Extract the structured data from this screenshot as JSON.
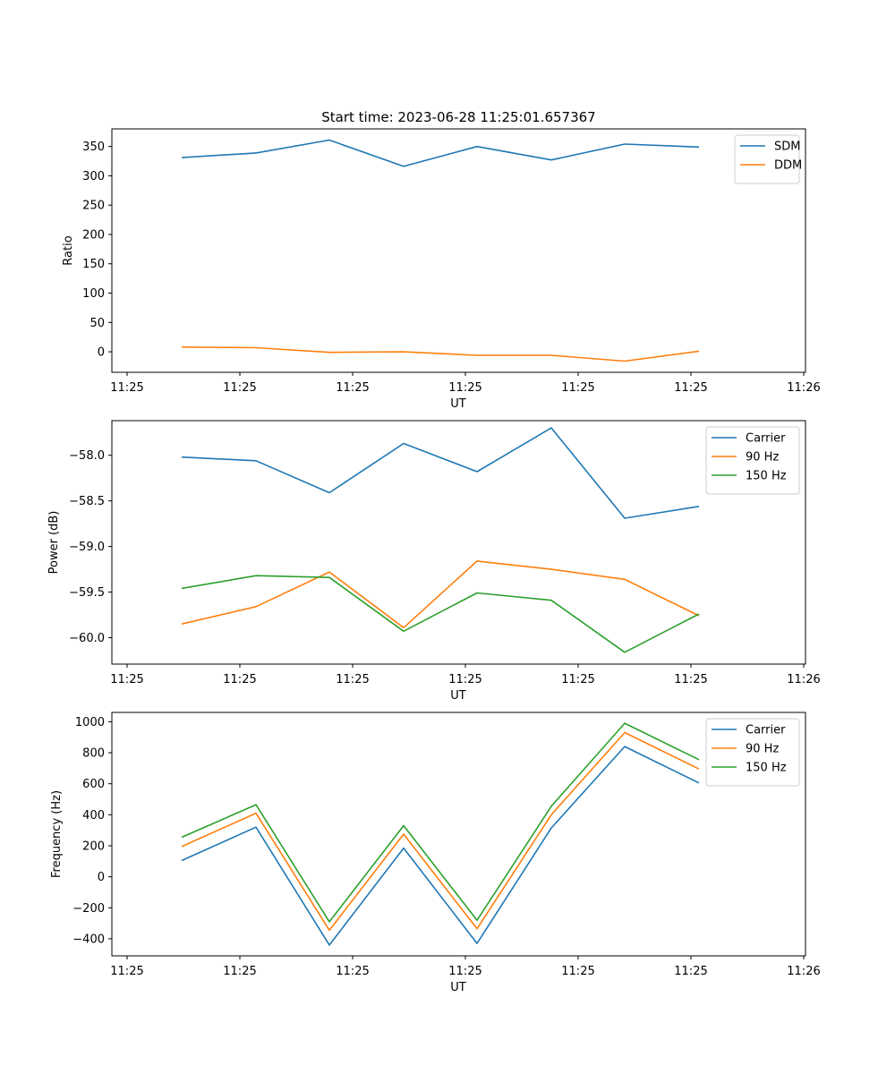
{
  "figure_title": "Start time: 2023-06-28 11:25:01.657367",
  "chart_data": [
    {
      "type": "line",
      "title": "Start time: 2023-06-28 11:25:01.657367",
      "xlabel": "UT",
      "ylabel": "Ratio",
      "x_tick_labels": [
        "11:25",
        "11:25",
        "11:25",
        "11:25",
        "11:25",
        "11:25",
        "11:26"
      ],
      "y_ticks": [
        0,
        50,
        100,
        150,
        200,
        250,
        300,
        350
      ],
      "ylim": [
        -35,
        380
      ],
      "legend_position": "top-right",
      "grid": false,
      "series": [
        {
          "name": "SDM",
          "color": "#1f77b4",
          "values": [
            331,
            339,
            361,
            316,
            350,
            327,
            354,
            349
          ]
        },
        {
          "name": "DDM",
          "color": "#ff7f0e",
          "values": [
            8,
            7,
            -1,
            0,
            -6,
            -6,
            -16,
            1
          ]
        }
      ]
    },
    {
      "type": "line",
      "title": "",
      "xlabel": "UT",
      "ylabel": "Power (dB)",
      "x_tick_labels": [
        "11:25",
        "11:25",
        "11:25",
        "11:25",
        "11:25",
        "11:25",
        "11:26"
      ],
      "y_ticks": [
        -60.0,
        -59.5,
        -59.0,
        -58.5,
        -58.0
      ],
      "y_tick_labels": [
        "−60.0",
        "−59.5",
        "−59.0",
        "−58.5",
        "−58.0"
      ],
      "ylim": [
        -60.29,
        -57.62
      ],
      "legend_position": "top-right",
      "grid": false,
      "series": [
        {
          "name": "Carrier",
          "color": "#1f77b4",
          "values": [
            -58.02,
            -58.06,
            -58.41,
            -57.87,
            -58.18,
            -57.7,
            -58.69,
            -58.56
          ]
        },
        {
          "name": "90 Hz",
          "color": "#ff7f0e",
          "values": [
            -59.85,
            -59.66,
            -59.28,
            -59.89,
            -59.16,
            -59.25,
            -59.36,
            -59.76
          ]
        },
        {
          "name": "150 Hz",
          "color": "#2ca02c",
          "values": [
            -59.46,
            -59.32,
            -59.34,
            -59.93,
            -59.51,
            -59.59,
            -60.16,
            -59.74
          ]
        }
      ]
    },
    {
      "type": "line",
      "title": "",
      "xlabel": "UT",
      "ylabel": "Frequency (Hz)",
      "x_tick_labels": [
        "11:25",
        "11:25",
        "11:25",
        "11:25",
        "11:25",
        "11:25",
        "11:26"
      ],
      "y_ticks": [
        -400,
        -200,
        0,
        200,
        400,
        600,
        800,
        1000
      ],
      "y_tick_labels": [
        "−400",
        "−200",
        "0",
        "200",
        "400",
        "600",
        "800",
        "1000"
      ],
      "ylim": [
        -510,
        1060
      ],
      "legend_position": "top-right",
      "grid": false,
      "series": [
        {
          "name": "Carrier",
          "color": "#1f77b4",
          "values": [
            105,
            320,
            -440,
            185,
            -430,
            315,
            840,
            605
          ]
        },
        {
          "name": "90 Hz",
          "color": "#ff7f0e",
          "values": [
            195,
            410,
            -345,
            275,
            -335,
            400,
            930,
            695
          ]
        },
        {
          "name": "150 Hz",
          "color": "#2ca02c",
          "values": [
            255,
            465,
            -290,
            330,
            -280,
            455,
            990,
            755
          ]
        }
      ]
    }
  ]
}
